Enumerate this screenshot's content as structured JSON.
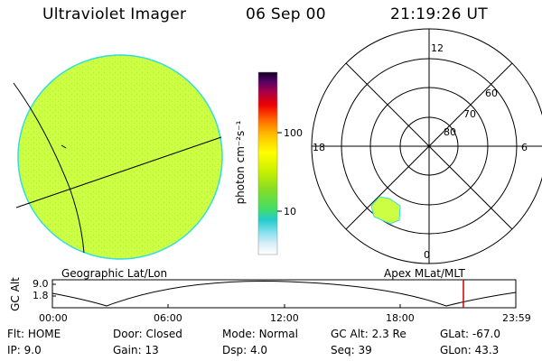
{
  "header": {
    "instrument": "Ultraviolet Imager",
    "date": "06 Sep 00",
    "time": "21:19:26 UT"
  },
  "colorbar": {
    "unit_label": "photon cm⁻²s⁻¹",
    "ticks": [
      "100",
      "10"
    ]
  },
  "left_panel": {
    "caption": "Geographic Lat/Lon",
    "fill_color": "#ccff44",
    "edge_color": "#33dddd"
  },
  "polar_plot": {
    "caption": "Apex MLat/MLT",
    "mlt_labels": {
      "top": "12",
      "bottom": "0",
      "left": "18",
      "right": "6"
    },
    "lat_labels": [
      "60",
      "70",
      "80"
    ]
  },
  "altitude_plot": {
    "ylabel": "GC Alt",
    "yticks": [
      "9.0",
      "1.8"
    ],
    "xticks": [
      "00:00",
      "06:00",
      "12:00",
      "18:00",
      "23:59"
    ],
    "marker_color": "#cc0000",
    "marker_time": "21:19:26"
  },
  "status": {
    "row1": [
      {
        "label": "Flt:",
        "value": "HOME"
      },
      {
        "label": "Door:",
        "value": "Closed"
      },
      {
        "label": "Mode:",
        "value": "Normal"
      },
      {
        "label": "GC Alt:",
        "value": "2.3 Re"
      },
      {
        "label": "GLat:",
        "value": "-67.0"
      }
    ],
    "row2": [
      {
        "label": "IP:",
        "value": "9.0"
      },
      {
        "label": "Gain:",
        "value": "13"
      },
      {
        "label": "Dsp:",
        "value": "4.0"
      },
      {
        "label": "Seq:",
        "value": "39"
      },
      {
        "label": "GLon:",
        "value": "43.3"
      }
    ]
  }
}
